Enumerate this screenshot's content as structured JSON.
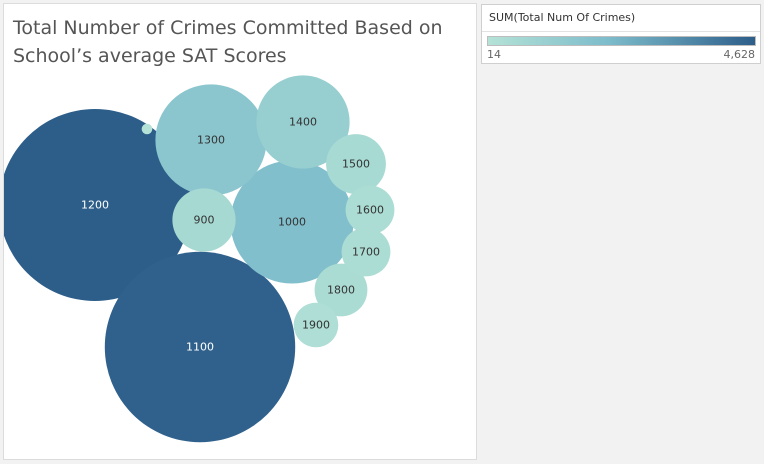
{
  "chart_data": {
    "type": "bubble",
    "title": "Total Number of Crimes Committed Based on School’s average SAT Scores",
    "size_color_measure": "SUM(Total Num Of Crimes)",
    "color_range": [
      14,
      4628
    ],
    "color_range_labels": [
      "14",
      "4,628"
    ],
    "colors": {
      "low": "#b4e2d6",
      "mid": "#7dbccb",
      "high": "#2d5e8a"
    },
    "categories": [
      "1200",
      "1100",
      "1000",
      "1300",
      "1400",
      "900",
      "1500",
      "1800",
      "1600",
      "1700",
      "1900",
      ""
    ],
    "values": [
      4628,
      4550,
      1900,
      1550,
      1090,
      500,
      450,
      350,
      300,
      300,
      250,
      14
    ]
  }
}
